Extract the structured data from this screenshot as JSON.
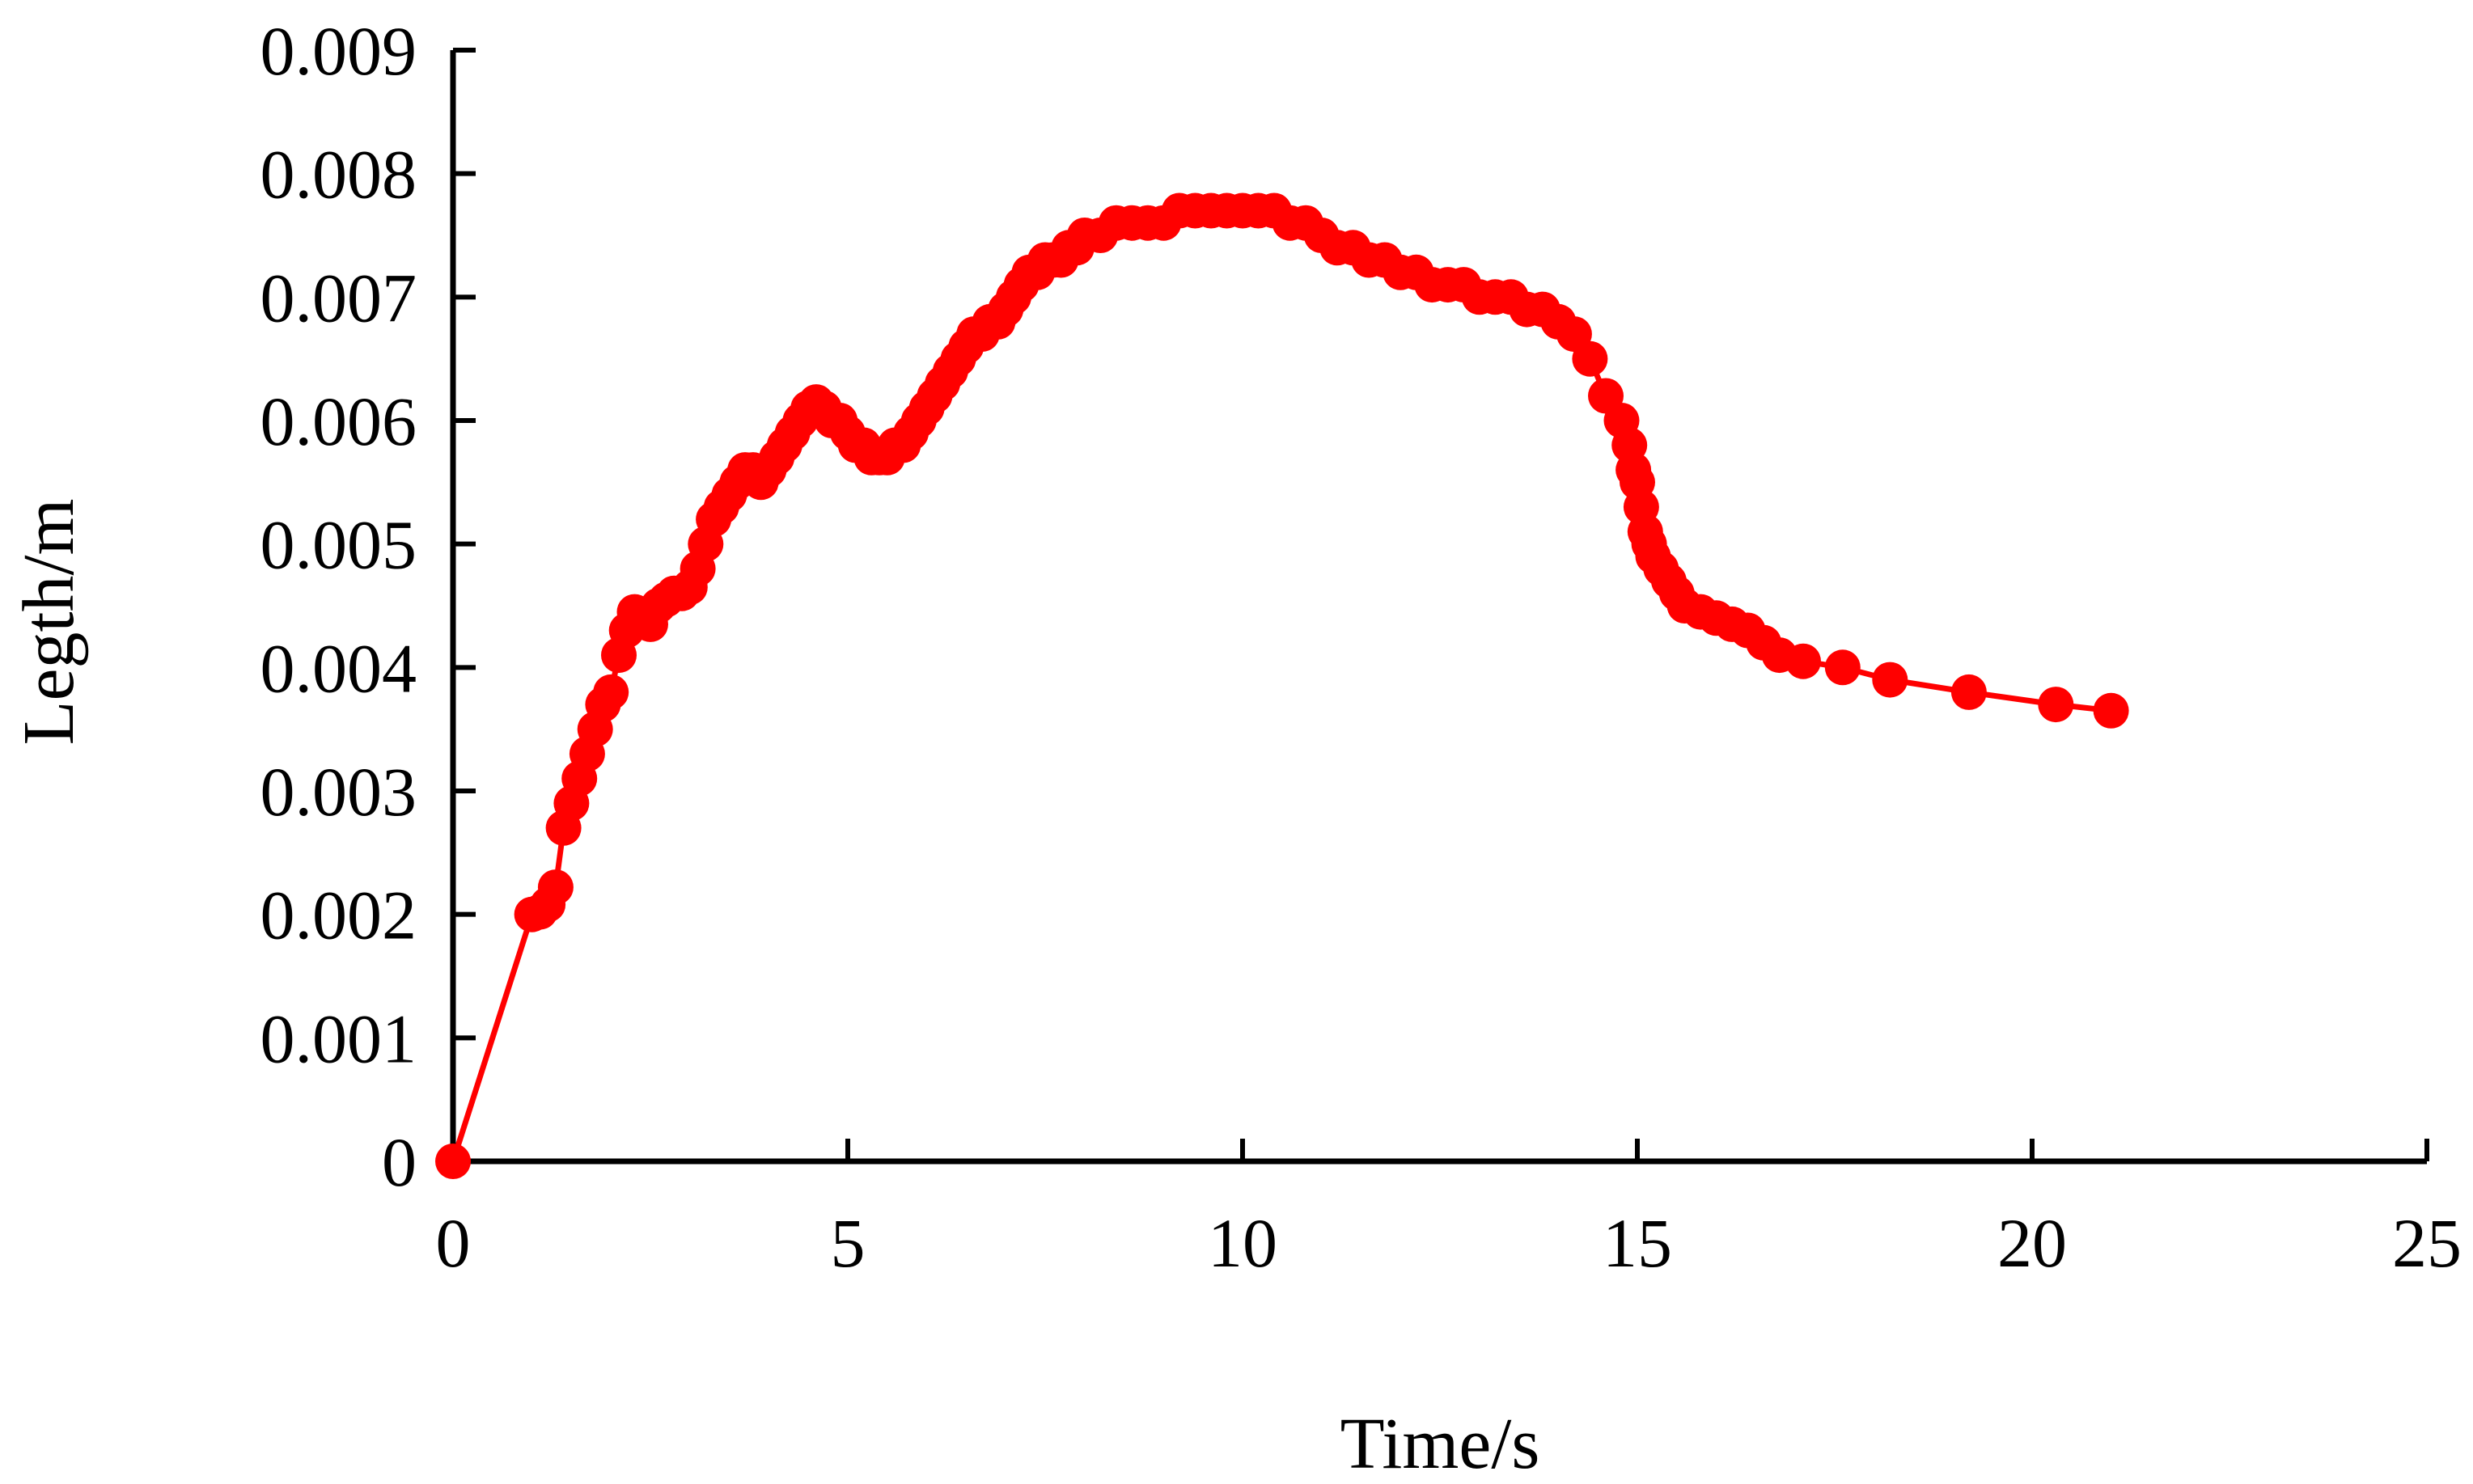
{
  "chart_data": {
    "type": "line",
    "xlabel": "Time/s",
    "ylabel": "Legth/m",
    "xlim": [
      0,
      25
    ],
    "ylim": [
      0,
      0.009
    ],
    "x_ticks": [
      "0",
      "5",
      "10",
      "15",
      "20",
      "25"
    ],
    "y_ticks": [
      "0",
      "0.001",
      "0.002",
      "0.003",
      "0.004",
      "0.005",
      "0.006",
      "0.007",
      "0.008",
      "0.009"
    ],
    "grid": false,
    "legend": "none",
    "series": [
      {
        "color": "#ff0000",
        "marker": "circle",
        "x": [
          0,
          1.0,
          1.1,
          1.2,
          1.3,
          1.4,
          1.5,
          1.6,
          1.7,
          1.8,
          1.9,
          2.0,
          2.1,
          2.2,
          2.3,
          2.4,
          2.5,
          2.6,
          2.7,
          2.8,
          2.9,
          3.0,
          3.1,
          3.2,
          3.3,
          3.4,
          3.5,
          3.6,
          3.7,
          3.8,
          3.9,
          4.0,
          4.1,
          4.2,
          4.3,
          4.4,
          4.5,
          4.6,
          4.7,
          4.8,
          4.9,
          5.0,
          5.1,
          5.2,
          5.3,
          5.4,
          5.5,
          5.6,
          5.7,
          5.8,
          5.9,
          6.0,
          6.1,
          6.2,
          6.3,
          6.4,
          6.5,
          6.6,
          6.7,
          6.8,
          6.9,
          7.0,
          7.1,
          7.2,
          7.3,
          7.4,
          7.5,
          7.6,
          7.7,
          7.8,
          7.9,
          8.0,
          8.2,
          8.4,
          8.6,
          8.8,
          9.0,
          9.2,
          9.4,
          9.6,
          9.8,
          10.0,
          10.2,
          10.4,
          10.6,
          10.8,
          11.0,
          11.2,
          11.4,
          11.6,
          11.8,
          12.0,
          12.2,
          12.4,
          12.6,
          12.8,
          13.0,
          13.2,
          13.4,
          13.6,
          13.8,
          14.0,
          14.2,
          14.4,
          14.6,
          14.8,
          14.9,
          14.95,
          15.0,
          15.05,
          15.1,
          15.15,
          15.2,
          15.3,
          15.4,
          15.5,
          15.6,
          15.8,
          16.0,
          16.2,
          16.4,
          16.6,
          16.8,
          17.1,
          17.6,
          18.2,
          19.2,
          20.3,
          21.0
        ],
        "y": [
          0,
          0.002,
          0.00202,
          0.00208,
          0.00222,
          0.0027,
          0.0029,
          0.0031,
          0.0033,
          0.0035,
          0.0037,
          0.0038,
          0.0041,
          0.0043,
          0.00445,
          0.0044,
          0.00435,
          0.0045,
          0.00455,
          0.0046,
          0.0046,
          0.00465,
          0.0048,
          0.005,
          0.0052,
          0.0053,
          0.0054,
          0.0055,
          0.0056,
          0.0056,
          0.0055,
          0.0056,
          0.0057,
          0.0058,
          0.0059,
          0.006,
          0.0061,
          0.00615,
          0.0061,
          0.006,
          0.006,
          0.0059,
          0.0058,
          0.0058,
          0.0057,
          0.0057,
          0.0057,
          0.0058,
          0.0058,
          0.0059,
          0.006,
          0.0061,
          0.0062,
          0.0063,
          0.0064,
          0.0065,
          0.0066,
          0.0067,
          0.0067,
          0.0068,
          0.0068,
          0.0069,
          0.007,
          0.0071,
          0.0072,
          0.0072,
          0.0073,
          0.0073,
          0.0073,
          0.0074,
          0.0074,
          0.0075,
          0.0075,
          0.0076,
          0.0076,
          0.0076,
          0.0076,
          0.0077,
          0.0077,
          0.0077,
          0.0077,
          0.0077,
          0.0077,
          0.0077,
          0.0076,
          0.0076,
          0.0075,
          0.0074,
          0.0074,
          0.0073,
          0.0073,
          0.0072,
          0.0072,
          0.0071,
          0.0071,
          0.0071,
          0.007,
          0.007,
          0.007,
          0.0069,
          0.0069,
          0.0068,
          0.0067,
          0.0065,
          0.0062,
          0.006,
          0.0058,
          0.0056,
          0.0055,
          0.0053,
          0.0051,
          0.005,
          0.0049,
          0.0048,
          0.0047,
          0.0046,
          0.0045,
          0.00445,
          0.0044,
          0.00435,
          0.0043,
          0.0042,
          0.0041,
          0.00405,
          0.004,
          0.0039,
          0.0038,
          0.0037,
          0.00365
        ]
      }
    ]
  }
}
